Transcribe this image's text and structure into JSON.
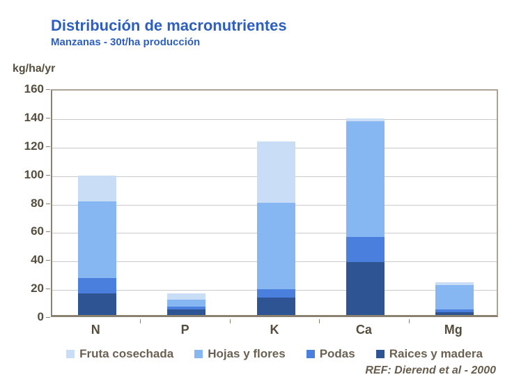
{
  "header": {
    "title": "Distribución de macronutrientes",
    "subtitle": "Manzanas - 30t/ha producción"
  },
  "footer": {
    "ref_text": "REF: Dierend et al - 2000"
  },
  "colors": {
    "title_blue": "#2d5fc0",
    "axis_text": "#554d3e",
    "axis_line": "#8a8170",
    "frame_border": "#aba395",
    "gridline": "#c9c9c9",
    "fruta_cosechada": "#c9def6",
    "hojas_y_flores": "#86b7f3",
    "podas": "#4a7fdd",
    "raices_y_madera": "#2f5493"
  },
  "chart_data": {
    "type": "bar",
    "stacked": true,
    "title": "Distribución de macronutrientes",
    "subtitle": "Manzanas - 30t/ha producción",
    "ylabel": "kg/ha/yr",
    "xlabel": "",
    "ylim": [
      0,
      160
    ],
    "yticks": [
      0,
      20,
      40,
      60,
      80,
      100,
      120,
      140,
      160
    ],
    "grid": true,
    "legend_position": "bottom",
    "categories": [
      "N",
      "P",
      "K",
      "Ca",
      "Mg"
    ],
    "series": [
      {
        "name": "Raices y madera",
        "color": "#2f5493",
        "values": [
          15,
          4,
          12,
          37,
          2
        ]
      },
      {
        "name": "Podas",
        "color": "#4a7fdd",
        "values": [
          11,
          2,
          6,
          18,
          2
        ]
      },
      {
        "name": "Hojas y flores",
        "color": "#86b7f3",
        "values": [
          54,
          5,
          61,
          81,
          17
        ]
      },
      {
        "name": "Fruta cosechada",
        "color": "#c9def6",
        "values": [
          18,
          4,
          43,
          2,
          2
        ]
      }
    ],
    "totals": [
      98,
      15,
      122,
      138,
      23
    ]
  },
  "legend": {
    "items": [
      {
        "label": "Fruta cosechada",
        "color": "#c9def6"
      },
      {
        "label": "Hojas y flores",
        "color": "#86b7f3"
      },
      {
        "label": "Podas",
        "color": "#4a7fdd"
      },
      {
        "label": "Raices y madera",
        "color": "#2f5493"
      }
    ]
  }
}
